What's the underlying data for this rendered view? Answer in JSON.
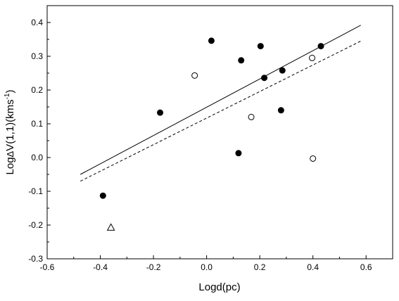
{
  "chart_data": {
    "type": "scatter",
    "xlabel": "Logd(pc)",
    "ylabel_parts": {
      "prefix": "Log",
      "delta": "Δ",
      "main": "V(1,1)(kms",
      "sup": "-1",
      "suffix": ")"
    },
    "xlim": [
      -0.6,
      0.7
    ],
    "ylim": [
      -0.3,
      0.45
    ],
    "x_ticks": [
      -0.6,
      -0.4,
      -0.2,
      0.0,
      0.2,
      0.4,
      0.6
    ],
    "x_tick_labels": [
      "-0.6",
      "-0.4",
      "-0.2",
      "0.0",
      "0.2",
      "0.4",
      "0.6"
    ],
    "y_ticks": [
      -0.3,
      -0.2,
      -0.1,
      0.0,
      0.1,
      0.2,
      0.3,
      0.4
    ],
    "y_tick_labels": [
      "-0.3",
      "-0.2",
      "-0.1",
      "0.0",
      "0.1",
      "0.2",
      "0.3",
      "0.4"
    ],
    "series": [
      {
        "marker": "filled-circle",
        "points": [
          [
            -0.39,
            -0.113
          ],
          [
            -0.175,
            0.133
          ],
          [
            0.018,
            0.346
          ],
          [
            0.12,
            0.013
          ],
          [
            0.13,
            0.288
          ],
          [
            0.203,
            0.33
          ],
          [
            0.217,
            0.236
          ],
          [
            0.28,
            0.14
          ],
          [
            0.285,
            0.258
          ],
          [
            0.43,
            0.33
          ]
        ]
      },
      {
        "marker": "open-circle",
        "points": [
          [
            -0.045,
            0.243
          ],
          [
            0.168,
            0.12
          ],
          [
            0.397,
            0.295
          ],
          [
            0.4,
            -0.003
          ]
        ]
      },
      {
        "marker": "open-triangle",
        "points": [
          [
            -0.36,
            -0.207
          ]
        ]
      }
    ],
    "lines": [
      {
        "style": "solid",
        "x": [
          -0.475,
          0.58
        ],
        "y": [
          -0.05,
          0.392
        ]
      },
      {
        "style": "dashed",
        "x": [
          -0.475,
          0.58
        ],
        "y": [
          -0.07,
          0.345
        ]
      }
    ],
    "grid": false,
    "colors": {
      "axis": "#000000",
      "marker": "#000000",
      "background": "#ffffff"
    }
  }
}
